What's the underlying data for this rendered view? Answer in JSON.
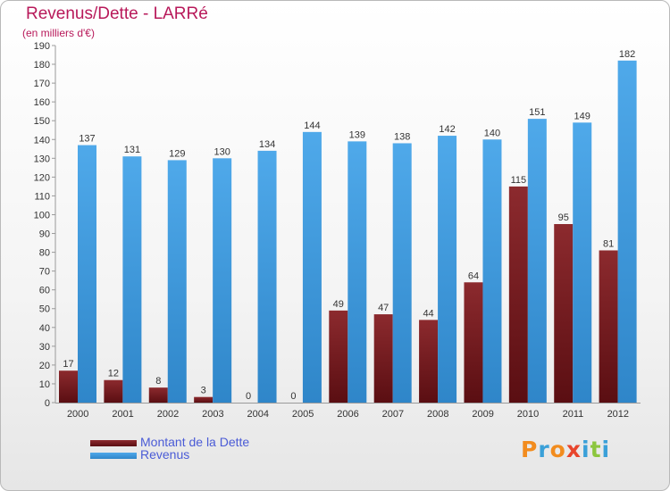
{
  "chart_data": {
    "type": "bar",
    "title": "Revenus/Dette - LARRé",
    "subtitle": "(en milliers d'€)",
    "categories": [
      "2000",
      "2001",
      "2002",
      "2003",
      "2004",
      "2005",
      "2006",
      "2007",
      "2008",
      "2009",
      "2010",
      "2011",
      "2012"
    ],
    "series": [
      {
        "name": "Montant de la Dette",
        "color": "#7a1c20",
        "values": [
          17,
          12,
          8,
          3,
          0,
          0,
          49,
          47,
          44,
          64,
          115,
          95,
          81
        ]
      },
      {
        "name": "Revenus",
        "color": "#3f9be0",
        "values": [
          137,
          131,
          129,
          130,
          134,
          144,
          139,
          138,
          142,
          140,
          151,
          149,
          182
        ]
      }
    ],
    "ylim": [
      0,
      190
    ],
    "ytick_step": 10,
    "grid": false,
    "legend_placement": "bottom-left",
    "xlabel": "",
    "ylabel": ""
  },
  "logo": {
    "text": "Proxiti",
    "letter_colors": [
      "#f28c1e",
      "#3aa0d8",
      "#f28c1e",
      "#e8452c",
      "#3aa0d8",
      "#8cc63e",
      "#3aa0d8"
    ]
  }
}
